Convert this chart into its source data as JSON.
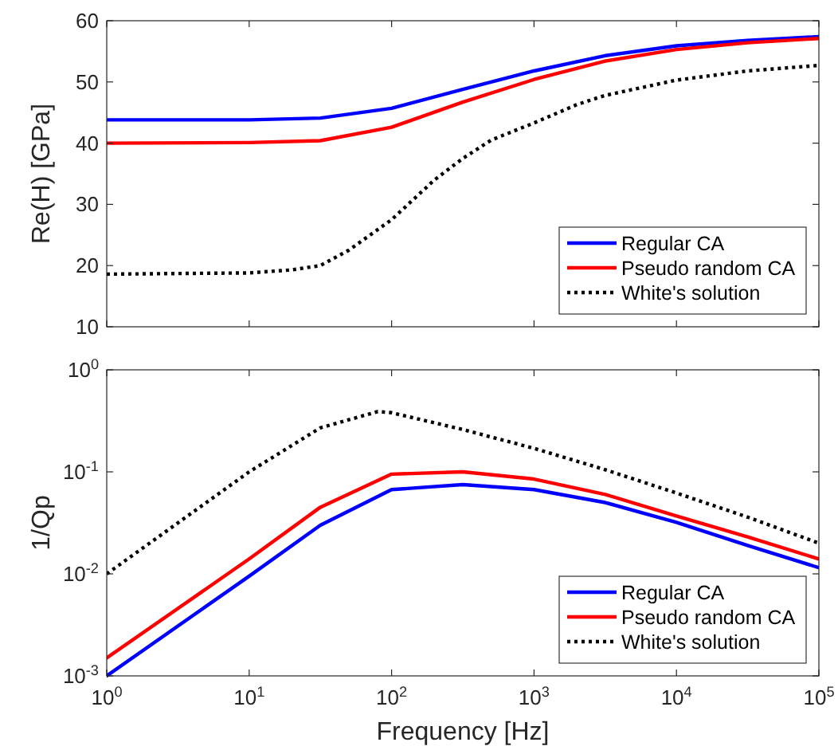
{
  "chart_data": [
    {
      "type": "line",
      "ylabel": "Re(H) [GPa]",
      "log": "x",
      "xlim": [
        1,
        100000
      ],
      "ylim": [
        10,
        60
      ],
      "yticks": [
        10,
        20,
        30,
        40,
        50,
        60
      ],
      "xticks": [
        {
          "value": 1,
          "label": null
        },
        {
          "value": 10,
          "label": null
        },
        {
          "value": 100,
          "label": null
        },
        {
          "value": 1000,
          "label": null
        },
        {
          "value": 10000,
          "label": null
        },
        {
          "value": 100000,
          "label": null
        }
      ],
      "tick_labels": "y",
      "legend": "bottom right",
      "grid": false,
      "series": [
        {
          "name": "Regular CA",
          "color": "#0000ff",
          "line_style": "solid",
          "x": [
            1,
            10,
            31.6,
            100,
            316,
            1000,
            3162,
            10000,
            31623,
            100000
          ],
          "values": [
            43.8,
            43.8,
            44.1,
            45.7,
            48.8,
            51.8,
            54.3,
            55.9,
            56.8,
            57.4
          ]
        },
        {
          "name": "Pseudo random CA",
          "color": "#ff0000",
          "line_style": "solid",
          "x": [
            1,
            10,
            31.6,
            100,
            316,
            1000,
            3162,
            10000,
            31623,
            100000
          ],
          "values": [
            40,
            40.1,
            40.4,
            42.6,
            46.7,
            50.4,
            53.4,
            55.3,
            56.4,
            57.1
          ]
        },
        {
          "name": "White's solution",
          "color": "#000000",
          "line_style": "dotted",
          "x": [
            1,
            3,
            10,
            20,
            31.6,
            50,
            100,
            200,
            316,
            500,
            1000,
            2000,
            3162,
            10000,
            31623,
            100000
          ],
          "values": [
            18.6,
            18.7,
            18.8,
            19.3,
            20,
            22.5,
            27.5,
            34,
            37.5,
            40.5,
            43.3,
            46.3,
            47.8,
            50.3,
            51.8,
            52.7
          ]
        }
      ]
    },
    {
      "type": "line",
      "ylabel": "1/Qp",
      "xlabel": "Frequency [Hz]",
      "log": "xy",
      "xlim": [
        1,
        100000
      ],
      "ylim": [
        0.001,
        1
      ],
      "yticks": [
        {
          "value": 0.001,
          "label": "10$^{-3}$"
        },
        {
          "value": 0.01,
          "label": "10$^{-2}$"
        },
        {
          "value": 0.1,
          "label": "10$^{-1}$"
        },
        {
          "value": 1,
          "label": "10$^{0}$"
        }
      ],
      "xticks": [
        {
          "value": 1,
          "label": "10$^{0}$"
        },
        {
          "value": 10,
          "label": "10$^{1}$"
        },
        {
          "value": 100,
          "label": "10$^{2}$"
        },
        {
          "value": 1000,
          "label": "10$^{3}$"
        },
        {
          "value": 10000,
          "label": "10$^{4}$"
        },
        {
          "value": 100000,
          "label": "10$^{5}$"
        }
      ],
      "legend": "bottom right",
      "grid": false,
      "series": [
        {
          "name": "Regular CA",
          "color": "#0000ff",
          "line_style": "solid",
          "x": [
            1,
            10,
            31.6,
            100,
            316,
            1000,
            3162,
            10000,
            31623,
            100000
          ],
          "values": [
            0.001,
            0.0095,
            0.03,
            0.067,
            0.075,
            0.067,
            0.05,
            0.032,
            0.019,
            0.0115
          ]
        },
        {
          "name": "Pseudo random CA",
          "color": "#ff0000",
          "line_style": "solid",
          "x": [
            1,
            10,
            31.6,
            100,
            316,
            1000,
            3162,
            10000,
            31623,
            100000
          ],
          "values": [
            0.0015,
            0.014,
            0.045,
            0.095,
            0.1,
            0.085,
            0.06,
            0.037,
            0.023,
            0.014
          ]
        },
        {
          "name": "White's solution",
          "color": "#000000",
          "line_style": "dotted",
          "x": [
            1,
            10,
            31.6,
            80,
            100,
            316,
            1000,
            3162,
            10000,
            31623,
            100000
          ],
          "values": [
            0.01,
            0.1,
            0.27,
            0.39,
            0.38,
            0.26,
            0.17,
            0.105,
            0.062,
            0.036,
            0.02
          ]
        }
      ]
    }
  ]
}
